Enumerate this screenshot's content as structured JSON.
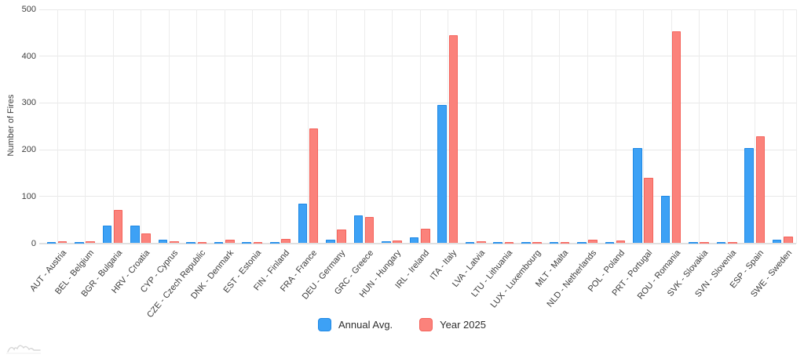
{
  "chart_data": {
    "type": "bar",
    "title": "",
    "xlabel": "",
    "ylabel": "Number of Fires",
    "ylim": [
      0,
      500
    ],
    "yticks": [
      0,
      100,
      200,
      300,
      400,
      500
    ],
    "grid": true,
    "legend_position": "bottom",
    "categories": [
      "AUT - Austria",
      "BEL - Belgium",
      "BGR - Bulgaria",
      "HRV - Croatia",
      "CYP - Cyprus",
      "CZE - Czech Republic",
      "DNK - Denmark",
      "EST - Estonia",
      "FIN - Finland",
      "FRA - France",
      "DEU - Germany",
      "GRC - Greece",
      "HUN - Hungary",
      "IRL - Ireland",
      "ITA - Italy",
      "LVA - Latvia",
      "LTU - Lithuania",
      "LUX - Luxembourg",
      "MLT - Malta",
      "NLD - Netherlands",
      "POL - Poland",
      "PRT - Portugal",
      "ROU - Romania",
      "SVK - Slovakia",
      "SVN - Slovenia",
      "ESP - Spain",
      "SWE - Sweden"
    ],
    "series": [
      {
        "name": "Annual Avg.",
        "fill": "#3DA1F5",
        "border": "#1E88E5",
        "values": [
          2,
          3,
          37,
          38,
          8,
          3,
          2,
          2,
          2,
          85,
          7,
          59,
          5,
          13,
          295,
          3,
          3,
          2,
          2,
          3,
          3,
          203,
          101,
          2,
          2,
          203,
          8
        ]
      },
      {
        "name": "Year 2025",
        "fill": "#FB827B",
        "border": "#F4635B",
        "values": [
          4,
          5,
          71,
          21,
          4,
          2,
          8,
          1,
          10,
          245,
          30,
          56,
          6,
          31,
          445,
          4,
          1,
          1,
          1,
          8,
          6,
          140,
          453,
          2,
          2,
          228,
          15
        ]
      }
    ]
  }
}
